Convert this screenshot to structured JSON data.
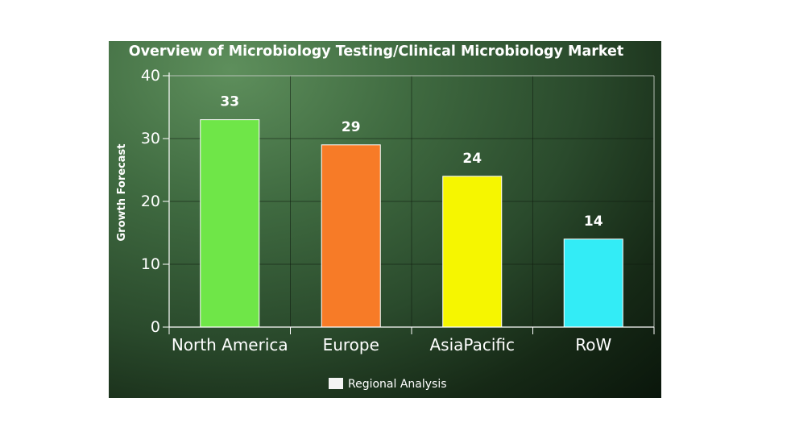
{
  "chart_data": {
    "type": "bar",
    "title": "Overview of Microbiology Testing/Clinical Microbiology Market",
    "ylabel": "Growth Forecast",
    "xlabel": "",
    "categories": [
      "North America",
      "Europe",
      "AsiaPacific",
      "RoW"
    ],
    "series": [
      {
        "name": "Regional Analysis",
        "values": [
          33,
          29,
          24,
          14
        ]
      }
    ],
    "bar_colors": [
      "#6fe648",
      "#f77b27",
      "#f6f600",
      "#33ecf6"
    ],
    "ylim": [
      0,
      40
    ],
    "yticks": [
      0,
      10,
      20,
      30,
      40
    ],
    "grid": true,
    "legend_position": "bottom-center",
    "data_labels": true
  }
}
